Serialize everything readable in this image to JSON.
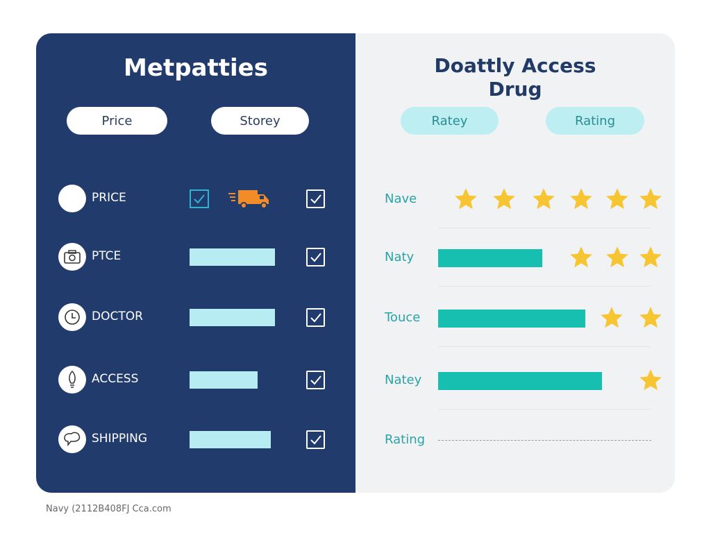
{
  "left_panel": {
    "title": "Metpatties",
    "buttons": [
      "Price",
      "Storey"
    ],
    "rows": [
      {
        "label": "PRICE",
        "icon": "circle-icon",
        "bar": null,
        "checked": true
      },
      {
        "label": "PTCE",
        "icon": "camera-icon",
        "bar": 1.0,
        "checked": true
      },
      {
        "label": "DOCTOR",
        "icon": "clock-icon",
        "bar": 1.0,
        "checked": true
      },
      {
        "label": "ACCESS",
        "icon": "lightbulb-icon",
        "bar": 0.8,
        "checked": true
      },
      {
        "label": "SHIPPING",
        "icon": "chat-bubble-icon",
        "bar": 0.95,
        "checked": true
      }
    ]
  },
  "right_panel": {
    "title_line1": "Doattly Access",
    "title_line2": "Drug",
    "buttons": [
      "Ratey",
      "Rating"
    ],
    "rows": [
      {
        "label": "Nave",
        "stars": 6,
        "bar": 0
      },
      {
        "label": "Naty",
        "stars": 3,
        "bar": 0.49
      },
      {
        "label": "Touce",
        "stars": 2,
        "bar": 0.69
      },
      {
        "label": "Natey",
        "stars": 1,
        "bar": 0.77
      },
      {
        "label": "Rating",
        "stars": 0,
        "bar": 0
      }
    ]
  },
  "colors": {
    "navy": "#213b6c",
    "teal": "#17bfb0",
    "star": "#f7c531",
    "truck": "#f28c28"
  },
  "footer": "Navy (2112B408FJ Cca.com"
}
